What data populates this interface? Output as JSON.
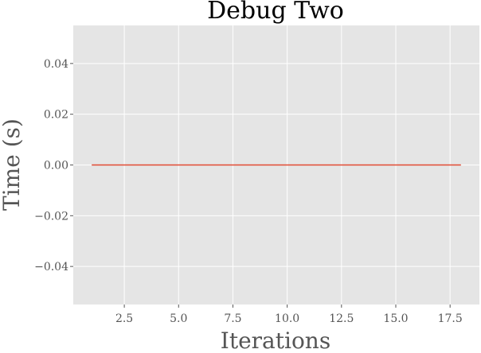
{
  "chart_data": {
    "type": "line",
    "title": "Debug Two",
    "xlabel": "Iterations",
    "ylabel": "Time (s)",
    "xlim": [
      0.15,
      18.85
    ],
    "ylim": [
      -0.055,
      0.055
    ],
    "xticks": [
      2.5,
      5.0,
      7.5,
      10.0,
      12.5,
      15.0,
      17.5
    ],
    "xtick_labels": [
      "2.5",
      "5.0",
      "7.5",
      "10.0",
      "12.5",
      "15.0",
      "17.5"
    ],
    "yticks": [
      -0.04,
      -0.02,
      0.0,
      0.02,
      0.04
    ],
    "ytick_labels": [
      "−0.04",
      "−0.02",
      "0.00",
      "0.02",
      "0.04"
    ],
    "grid": true,
    "series": [
      {
        "color": "#E24A33",
        "x": [
          1,
          18
        ],
        "y": [
          0.0,
          0.0
        ]
      }
    ]
  },
  "colors": {
    "plot_background": "#E5E5E5",
    "grid": "#FFFFFF",
    "text": "#555555"
  }
}
